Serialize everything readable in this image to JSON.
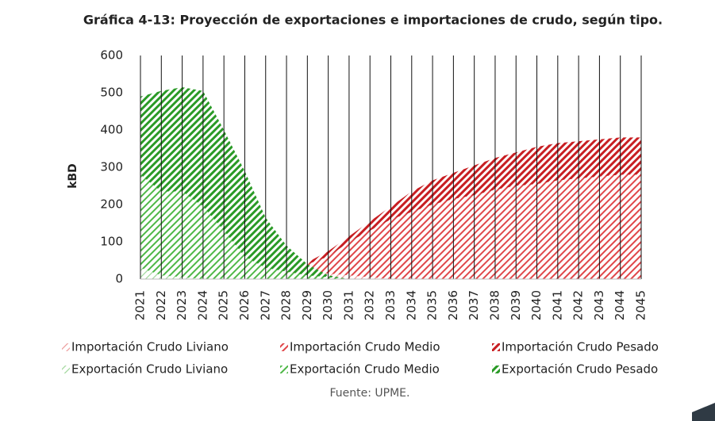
{
  "chart_data": {
    "type": "stacked_area",
    "title": "Gráfica 4-13: Proyección de exportaciones e importaciones de crudo, según tipo.",
    "y_label": "kBD",
    "source": "Fuente: UPME.",
    "categories": [
      "2021",
      "2022",
      "2023",
      "2024",
      "2025",
      "2026",
      "2027",
      "2028",
      "2029",
      "2030",
      "2031",
      "2032",
      "2033",
      "2034",
      "2035",
      "2036",
      "2037",
      "2038",
      "2039",
      "2040",
      "2041",
      "2042",
      "2043",
      "2044",
      "2045"
    ],
    "ylim": [
      0,
      600
    ],
    "yticks": [
      0,
      100,
      200,
      300,
      400,
      500,
      600
    ],
    "vertical_grid": true,
    "series": [
      {
        "name": "Importación Crudo Liviano",
        "color": "#ec9a9a",
        "stack": "import",
        "values": [
          0,
          0,
          0,
          0,
          0,
          0,
          0,
          15,
          20,
          15,
          10,
          5,
          0,
          0,
          0,
          0,
          0,
          0,
          0,
          0,
          0,
          0,
          0,
          0,
          0
        ]
      },
      {
        "name": "Importación Crudo Medio",
        "color": "#e0474a",
        "stack": "import",
        "values": [
          0,
          0,
          0,
          0,
          0,
          0,
          0,
          5,
          20,
          45,
          90,
          125,
          160,
          180,
          200,
          215,
          225,
          240,
          250,
          255,
          265,
          270,
          275,
          280,
          280
        ]
      },
      {
        "name": "Importación Crudo Pesado",
        "color": "#c81e22",
        "stack": "import",
        "values": [
          0,
          0,
          0,
          0,
          0,
          0,
          0,
          0,
          5,
          15,
          15,
          25,
          35,
          55,
          65,
          70,
          80,
          85,
          90,
          100,
          100,
          100,
          100,
          100,
          100
        ]
      },
      {
        "name": "Exportación Crudo Liviano",
        "color": "#9fd79a",
        "stack": "export",
        "values": [
          30,
          10,
          5,
          0,
          0,
          0,
          0,
          0,
          0,
          0,
          0,
          0,
          0,
          0,
          0,
          0,
          0,
          0,
          0,
          0,
          0,
          0,
          0,
          0,
          0
        ]
      },
      {
        "name": "Exportación Crudo Medio",
        "color": "#4fb848",
        "stack": "export",
        "values": [
          250,
          225,
          230,
          195,
          130,
          60,
          30,
          20,
          10,
          5,
          0,
          0,
          0,
          0,
          0,
          0,
          0,
          0,
          0,
          0,
          0,
          0,
          0,
          0,
          0
        ]
      },
      {
        "name": "Exportación Crudo Pesado",
        "color": "#2a9a26",
        "stack": "export",
        "values": [
          210,
          270,
          280,
          310,
          270,
          230,
          135,
          70,
          30,
          5,
          0,
          0,
          0,
          0,
          0,
          0,
          0,
          0,
          0,
          0,
          0,
          0,
          0,
          0,
          0
        ]
      }
    ]
  }
}
